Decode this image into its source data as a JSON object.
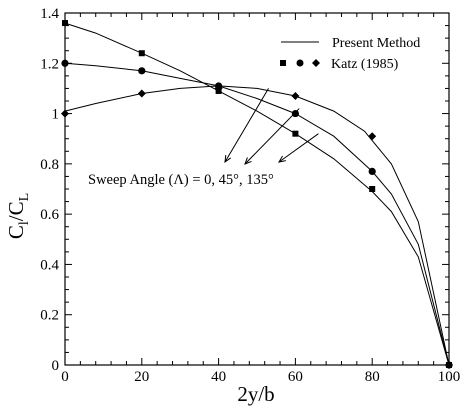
{
  "chart_data": {
    "type": "line",
    "xlabel": "2y/b",
    "ylabel": {
      "main": "C",
      "sub1": "l",
      "mid": "/C",
      "sub2": "L"
    },
    "xlim": [
      0,
      100
    ],
    "ylim": [
      0,
      1.4
    ],
    "x_ticks": [
      0,
      20,
      40,
      60,
      80,
      100
    ],
    "x_tick_labels": [
      "0",
      "20",
      "40",
      "60",
      "80",
      "100"
    ],
    "y_ticks": [
      0,
      0.2,
      0.4,
      0.6,
      0.8,
      1,
      1.2,
      1.4
    ],
    "y_tick_labels": [
      "0",
      "0.2",
      "0.4",
      "0.6",
      "0.8",
      "1",
      "1.2",
      "1.4"
    ],
    "grid": false,
    "legend_position": "top-right",
    "legend": [
      {
        "label": "Present Method",
        "symbol": "line"
      },
      {
        "label": "Katz (1985)",
        "symbol": "markers"
      }
    ],
    "annotation": {
      "text": "Sweep Angle (Λ) = 0, 45°, 135°",
      "arrow_targets": [
        [
          53,
          1.1
        ],
        [
          61,
          1.02
        ],
        [
          66,
          0.92
        ]
      ]
    },
    "line_series": [
      {
        "x": [
          0,
          8,
          20,
          30,
          40,
          50,
          60,
          70,
          80,
          85,
          92,
          100
        ],
        "y": [
          1.36,
          1.32,
          1.24,
          1.17,
          1.09,
          1.01,
          0.92,
          0.82,
          0.69,
          0.61,
          0.43,
          0.0
        ]
      },
      {
        "x": [
          0,
          8,
          20,
          30,
          40,
          50,
          60,
          70,
          80,
          85,
          92,
          100
        ],
        "y": [
          1.2,
          1.19,
          1.17,
          1.14,
          1.11,
          1.06,
          1.0,
          0.91,
          0.77,
          0.68,
          0.48,
          0.0
        ]
      },
      {
        "x": [
          0,
          8,
          20,
          30,
          40,
          50,
          60,
          70,
          78,
          85,
          92,
          100
        ],
        "y": [
          1.01,
          1.04,
          1.08,
          1.1,
          1.11,
          1.1,
          1.07,
          1.01,
          0.93,
          0.8,
          0.57,
          0.0
        ]
      }
    ],
    "marker_series": [
      {
        "marker": "square",
        "x": [
          0,
          20,
          40,
          60,
          80,
          100
        ],
        "y": [
          1.36,
          1.24,
          1.09,
          0.92,
          0.7,
          0.0
        ]
      },
      {
        "marker": "circle",
        "x": [
          0,
          20,
          40,
          60,
          80,
          100
        ],
        "y": [
          1.2,
          1.17,
          1.11,
          1.0,
          0.77,
          0.0
        ]
      },
      {
        "marker": "diamond",
        "x": [
          0,
          20,
          40,
          60,
          80,
          100
        ],
        "y": [
          1.0,
          1.08,
          1.1,
          1.07,
          0.91,
          0.0
        ]
      }
    ]
  }
}
